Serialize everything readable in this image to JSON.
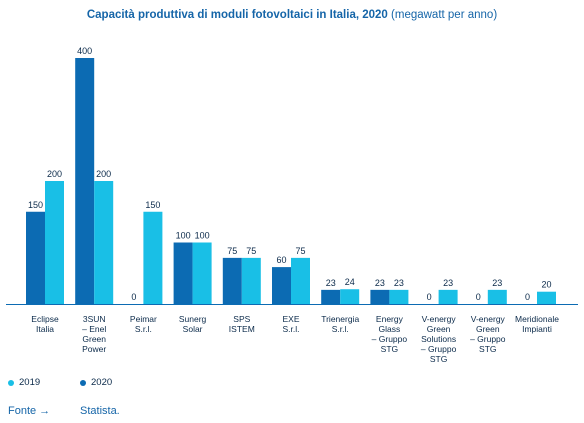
{
  "title": "Capacità produttiva di moduli fotovoltaici in Italia, 2020",
  "subtitle": "(megawatt per anno)",
  "colors": {
    "2019": "#19bfe6",
    "2020": "#0c6bb3",
    "axis": "#0c6bb3",
    "text": "#0b2a4a"
  },
  "legend": {
    "s2019": "2019",
    "s2020": "2020"
  },
  "source": {
    "label": "Fonte →",
    "value": "Statista."
  },
  "chart_data": {
    "type": "bar",
    "categories": [
      [
        "Eclipse",
        "Italia"
      ],
      [
        "3SUN",
        "– Enel",
        "Green",
        "Power"
      ],
      [
        "Peimar",
        "S.r.l."
      ],
      [
        "Sunerg",
        "Solar"
      ],
      [
        "SPS",
        "ISTEM"
      ],
      [
        "EXE",
        "S.r.l."
      ],
      [
        "Trienergia",
        "S.r.l."
      ],
      [
        "Energy",
        "Glass",
        "– Gruppo",
        "STG"
      ],
      [
        "V-energy",
        "Green",
        "Solutions",
        "– Gruppo",
        "STG"
      ],
      [
        "V-energy",
        "Green",
        "– Gruppo",
        "STG"
      ],
      [
        "Meridionale",
        "Impianti"
      ]
    ],
    "series": [
      {
        "name": "2020",
        "values": [
          150,
          400,
          0,
          100,
          75,
          60,
          23,
          23,
          0,
          0,
          0
        ]
      },
      {
        "name": "2019",
        "values": [
          200,
          200,
          150,
          100,
          75,
          75,
          24,
          23,
          23,
          23,
          20
        ]
      }
    ],
    "ylim": [
      0,
      400
    ]
  }
}
